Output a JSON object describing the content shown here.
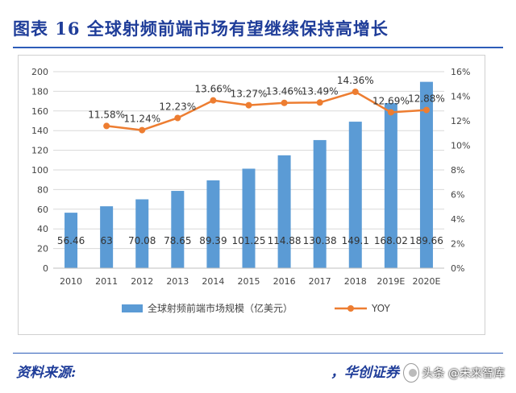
{
  "figure_title": "图表 16   全球射频前端市场有望继续保持高增长",
  "source": {
    "label": "资料来源:",
    "value": "，华创证券"
  },
  "watermark": {
    "text": "头条 @未来智库"
  },
  "colors": {
    "bar": "#5b9bd5",
    "line": "#ed7d31",
    "title": "#1f3d99",
    "grid": "#d9d9d9"
  },
  "chart_data": {
    "type": "bar",
    "title": "",
    "categories": [
      "2010",
      "2011",
      "2012",
      "2013",
      "2014",
      "2015",
      "2016",
      "2017",
      "2018",
      "2019E",
      "2020E"
    ],
    "series": [
      {
        "name": "全球射频前端市场规模（亿美元）",
        "type": "bar",
        "axis": "left",
        "values": [
          56.46,
          63,
          70.08,
          78.65,
          89.39,
          101.25,
          114.88,
          130.38,
          149.1,
          168.02,
          189.66
        ],
        "labels": [
          "56.46",
          "63",
          "70.08",
          "78.65",
          "89.39",
          "101.25",
          "114.88",
          "130.38",
          "149.1",
          "168.02",
          "189.66"
        ]
      },
      {
        "name": "YOY",
        "type": "line",
        "axis": "right",
        "values": [
          null,
          11.58,
          11.24,
          12.23,
          13.66,
          13.27,
          13.46,
          13.49,
          14.36,
          12.69,
          12.88
        ],
        "labels": [
          "",
          "11.58%",
          "11.24%",
          "12.23%",
          "13.66%",
          "13.27%",
          "13.46%",
          "13.49%",
          "14.36%",
          "12.69%",
          "12.88%"
        ]
      }
    ],
    "y_left": {
      "min": 0,
      "max": 200,
      "step": 20,
      "ticks": [
        "0",
        "20",
        "40",
        "60",
        "80",
        "100",
        "120",
        "140",
        "160",
        "180",
        "200"
      ]
    },
    "y_right": {
      "min": 0,
      "max": 16,
      "step": 2,
      "ticks": [
        "0%",
        "2%",
        "4%",
        "6%",
        "8%",
        "10%",
        "12%",
        "14%",
        "16%"
      ]
    },
    "grid": true,
    "legend_position": "bottom"
  }
}
